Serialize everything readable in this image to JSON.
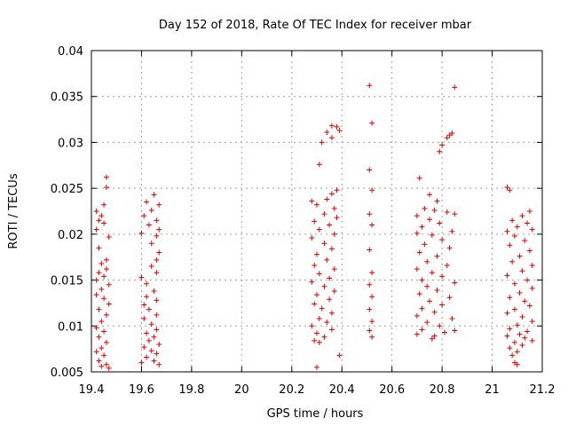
{
  "chart_data": {
    "type": "scatter",
    "title": "Day 152 of 2018, Rate Of TEC Index for receiver mbar",
    "xlabel": "GPS time / hours",
    "ylabel": "ROTI / TECUs",
    "xlim": [
      19.4,
      21.2
    ],
    "ylim": [
      0.005,
      0.04
    ],
    "x_ticks": [
      19.4,
      19.6,
      19.8,
      20.0,
      20.2,
      20.4,
      20.6,
      20.8,
      21.0,
      21.2
    ],
    "x_tick_labels": [
      "19.4",
      "19.6",
      "19.8",
      "20",
      "20.2",
      "20.4",
      "20.6",
      "20.8",
      "21",
      "21.2"
    ],
    "y_ticks": [
      0.005,
      0.01,
      0.015,
      0.02,
      0.025,
      0.03,
      0.035,
      0.04
    ],
    "y_tick_labels": [
      "0.005",
      "0.01",
      "0.015",
      "0.02",
      "0.025",
      "0.03",
      "0.035",
      "0.04"
    ],
    "grid": true,
    "marker": "+",
    "marker_color": "#e00000",
    "series": [
      {
        "name": "ROTI",
        "points": [
          [
            19.46,
            0.0262
          ],
          [
            19.46,
            0.0251
          ],
          [
            19.45,
            0.0232
          ],
          [
            19.42,
            0.0225
          ],
          [
            19.44,
            0.022
          ],
          [
            19.43,
            0.0215
          ],
          [
            19.45,
            0.0212
          ],
          [
            19.42,
            0.0205
          ],
          [
            19.47,
            0.0197
          ],
          [
            19.43,
            0.0185
          ],
          [
            19.46,
            0.0172
          ],
          [
            19.44,
            0.0168
          ],
          [
            19.46,
            0.0162
          ],
          [
            19.43,
            0.0158
          ],
          [
            19.45,
            0.0154
          ],
          [
            19.42,
            0.015
          ],
          [
            19.47,
            0.0145
          ],
          [
            19.44,
            0.014
          ],
          [
            19.42,
            0.0134
          ],
          [
            19.45,
            0.013
          ],
          [
            19.47,
            0.0124
          ],
          [
            19.43,
            0.0118
          ],
          [
            19.46,
            0.0112
          ],
          [
            19.44,
            0.0105
          ],
          [
            19.42,
            0.0098
          ],
          [
            19.45,
            0.0094
          ],
          [
            19.43,
            0.0088
          ],
          [
            19.46,
            0.0082
          ],
          [
            19.44,
            0.0076
          ],
          [
            19.42,
            0.0072
          ],
          [
            19.45,
            0.0068
          ],
          [
            19.43,
            0.0062
          ],
          [
            19.46,
            0.0058
          ],
          [
            19.44,
            0.0056
          ],
          [
            19.47,
            0.0054
          ],
          [
            19.65,
            0.0243
          ],
          [
            19.62,
            0.0235
          ],
          [
            19.67,
            0.0232
          ],
          [
            19.64,
            0.0226
          ],
          [
            19.61,
            0.022
          ],
          [
            19.66,
            0.0215
          ],
          [
            19.63,
            0.021
          ],
          [
            19.67,
            0.0205
          ],
          [
            19.6,
            0.0201
          ],
          [
            19.66,
            0.0198
          ],
          [
            19.64,
            0.019
          ],
          [
            19.67,
            0.018
          ],
          [
            19.66,
            0.0172
          ],
          [
            19.64,
            0.0165
          ],
          [
            19.6,
            0.0153
          ],
          [
            19.66,
            0.0158
          ],
          [
            19.62,
            0.0146
          ],
          [
            19.65,
            0.0138
          ],
          [
            19.62,
            0.0132
          ],
          [
            19.66,
            0.0128
          ],
          [
            19.61,
            0.0123
          ],
          [
            19.63,
            0.0118
          ],
          [
            19.66,
            0.0112
          ],
          [
            19.61,
            0.0108
          ],
          [
            19.64,
            0.0102
          ],
          [
            19.66,
            0.0096
          ],
          [
            19.62,
            0.0092
          ],
          [
            19.65,
            0.0088
          ],
          [
            19.63,
            0.0084
          ],
          [
            19.67,
            0.008
          ],
          [
            19.61,
            0.0077
          ],
          [
            19.64,
            0.0073
          ],
          [
            19.66,
            0.007
          ],
          [
            19.62,
            0.0066
          ],
          [
            19.65,
            0.0062
          ],
          [
            19.67,
            0.0058
          ],
          [
            19.6,
            0.006
          ],
          [
            20.36,
            0.0318
          ],
          [
            20.38,
            0.0317
          ],
          [
            20.34,
            0.0311
          ],
          [
            20.39,
            0.0313
          ],
          [
            20.36,
            0.0305
          ],
          [
            20.32,
            0.03
          ],
          [
            20.31,
            0.0276
          ],
          [
            20.38,
            0.0248
          ],
          [
            20.36,
            0.0244
          ],
          [
            20.34,
            0.0238
          ],
          [
            20.28,
            0.0236
          ],
          [
            20.3,
            0.0232
          ],
          [
            20.37,
            0.0228
          ],
          [
            20.33,
            0.0222
          ],
          [
            20.38,
            0.0218
          ],
          [
            20.29,
            0.0214
          ],
          [
            20.35,
            0.021
          ],
          [
            20.31,
            0.0205
          ],
          [
            20.37,
            0.02
          ],
          [
            20.28,
            0.0196
          ],
          [
            20.33,
            0.019
          ],
          [
            20.36,
            0.0184
          ],
          [
            20.3,
            0.0178
          ],
          [
            20.34,
            0.0172
          ],
          [
            20.29,
            0.0166
          ],
          [
            20.37,
            0.0162
          ],
          [
            20.31,
            0.0157
          ],
          [
            20.35,
            0.0152
          ],
          [
            20.28,
            0.0148
          ],
          [
            20.33,
            0.0143
          ],
          [
            20.37,
            0.0138
          ],
          [
            20.3,
            0.0134
          ],
          [
            20.35,
            0.0129
          ],
          [
            20.29,
            0.0124
          ],
          [
            20.32,
            0.0119
          ],
          [
            20.36,
            0.0114
          ],
          [
            20.31,
            0.0108
          ],
          [
            20.34,
            0.0104
          ],
          [
            20.28,
            0.01
          ],
          [
            20.36,
            0.0096
          ],
          [
            20.3,
            0.0092
          ],
          [
            20.33,
            0.0088
          ],
          [
            20.29,
            0.0084
          ],
          [
            20.31,
            0.0082
          ],
          [
            20.39,
            0.0068
          ],
          [
            20.3,
            0.0055
          ],
          [
            20.51,
            0.0362
          ],
          [
            20.52,
            0.0321
          ],
          [
            20.51,
            0.027
          ],
          [
            20.52,
            0.0248
          ],
          [
            20.51,
            0.0222
          ],
          [
            20.52,
            0.021
          ],
          [
            20.51,
            0.0183
          ],
          [
            20.52,
            0.0158
          ],
          [
            20.51,
            0.0145
          ],
          [
            20.52,
            0.0132
          ],
          [
            20.51,
            0.0118
          ],
          [
            20.52,
            0.0105
          ],
          [
            20.51,
            0.0095
          ],
          [
            20.52,
            0.0088
          ],
          [
            20.85,
            0.036
          ],
          [
            20.84,
            0.031
          ],
          [
            20.83,
            0.0308
          ],
          [
            20.82,
            0.0305
          ],
          [
            20.8,
            0.0297
          ],
          [
            20.79,
            0.029
          ],
          [
            20.71,
            0.0261
          ],
          [
            20.75,
            0.0243
          ],
          [
            20.78,
            0.0236
          ],
          [
            20.73,
            0.0228
          ],
          [
            20.77,
            0.0226
          ],
          [
            20.82,
            0.0224
          ],
          [
            20.85,
            0.0222
          ],
          [
            20.7,
            0.022
          ],
          [
            20.75,
            0.0216
          ],
          [
            20.79,
            0.0212
          ],
          [
            20.72,
            0.0208
          ],
          [
            20.84,
            0.0203
          ],
          [
            20.7,
            0.0201
          ],
          [
            20.76,
            0.0199
          ],
          [
            20.8,
            0.0194
          ],
          [
            20.73,
            0.0189
          ],
          [
            20.83,
            0.0185
          ],
          [
            20.71,
            0.018
          ],
          [
            20.78,
            0.0176
          ],
          [
            20.74,
            0.017
          ],
          [
            20.82,
            0.0166
          ],
          [
            20.7,
            0.0162
          ],
          [
            20.76,
            0.0158
          ],
          [
            20.8,
            0.0154
          ],
          [
            20.72,
            0.015
          ],
          [
            20.85,
            0.0147
          ],
          [
            20.74,
            0.0143
          ],
          [
            20.78,
            0.0139
          ],
          [
            20.71,
            0.0135
          ],
          [
            20.83,
            0.0131
          ],
          [
            20.75,
            0.0127
          ],
          [
            20.8,
            0.0123
          ],
          [
            20.72,
            0.0119
          ],
          [
            20.77,
            0.0115
          ],
          [
            20.7,
            0.0111
          ],
          [
            20.84,
            0.0108
          ],
          [
            20.74,
            0.0104
          ],
          [
            20.79,
            0.01
          ],
          [
            20.72,
            0.0096
          ],
          [
            20.81,
            0.0093
          ],
          [
            20.7,
            0.0091
          ],
          [
            20.77,
            0.0089
          ],
          [
            20.76,
            0.0086
          ],
          [
            20.85,
            0.0095
          ],
          [
            21.06,
            0.0251
          ],
          [
            21.07,
            0.0248
          ],
          [
            21.15,
            0.0225
          ],
          [
            21.12,
            0.022
          ],
          [
            21.08,
            0.0215
          ],
          [
            21.14,
            0.0212
          ],
          [
            21.1,
            0.0208
          ],
          [
            21.06,
            0.0203
          ],
          [
            21.16,
            0.0205
          ],
          [
            21.09,
            0.0198
          ],
          [
            21.13,
            0.0193
          ],
          [
            21.07,
            0.0188
          ],
          [
            21.15,
            0.0182
          ],
          [
            21.11,
            0.0176
          ],
          [
            21.08,
            0.017
          ],
          [
            21.16,
            0.0166
          ],
          [
            21.12,
            0.016
          ],
          [
            21.06,
            0.0155
          ],
          [
            21.14,
            0.015
          ],
          [
            21.09,
            0.0146
          ],
          [
            21.16,
            0.0141
          ],
          [
            21.11,
            0.0136
          ],
          [
            21.07,
            0.0131
          ],
          [
            21.13,
            0.0127
          ],
          [
            21.15,
            0.0122
          ],
          [
            21.09,
            0.0118
          ],
          [
            21.06,
            0.0114
          ],
          [
            21.12,
            0.011
          ],
          [
            21.16,
            0.0105
          ],
          [
            21.1,
            0.0101
          ],
          [
            21.07,
            0.0097
          ],
          [
            21.14,
            0.0094
          ],
          [
            21.11,
            0.0091
          ],
          [
            21.06,
            0.0089
          ],
          [
            21.13,
            0.0087
          ],
          [
            21.16,
            0.0084
          ],
          [
            21.09,
            0.0082
          ],
          [
            21.12,
            0.0079
          ],
          [
            21.07,
            0.0076
          ],
          [
            21.1,
            0.0072
          ],
          [
            21.08,
            0.0068
          ],
          [
            21.09,
            0.006
          ],
          [
            21.1,
            0.0058
          ]
        ]
      }
    ]
  }
}
